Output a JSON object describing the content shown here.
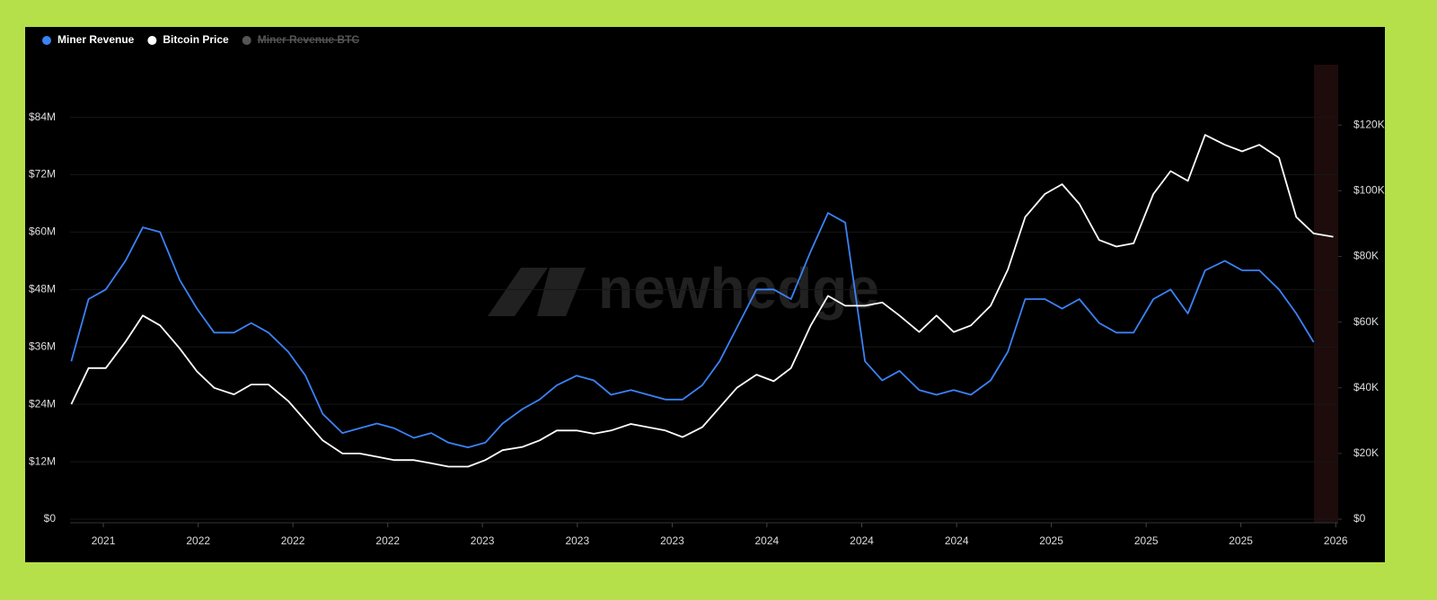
{
  "chart_data": {
    "type": "line",
    "watermark": "newhedge",
    "x": [
      2020.87,
      2020.94,
      2021.01,
      2021.09,
      2021.16,
      2021.23,
      2021.31,
      2021.38,
      2021.45,
      2021.53,
      2021.6,
      2021.67,
      2021.75,
      2021.82,
      2021.89,
      2021.97,
      2022.04,
      2022.11,
      2022.18,
      2022.26,
      2022.33,
      2022.4,
      2022.48,
      2022.55,
      2022.62,
      2022.7,
      2022.77,
      2022.84,
      2022.92,
      2022.99,
      2023.06,
      2023.14,
      2023.21,
      2023.28,
      2023.35,
      2023.43,
      2023.5,
      2023.57,
      2023.65,
      2023.72,
      2023.79,
      2023.87,
      2023.94,
      2024.01,
      2024.09,
      2024.16,
      2024.23,
      2024.31,
      2024.38,
      2024.45,
      2024.52,
      2024.6,
      2024.67,
      2024.74,
      2024.82,
      2024.89,
      2024.96,
      2025.04,
      2025.11,
      2025.18,
      2025.26,
      2025.33,
      2025.4,
      2025.47,
      2025.55,
      2025.62,
      2025.69,
      2025.77,
      2025.84,
      2025.91,
      2025.99
    ],
    "series": [
      {
        "name": "Miner Revenue",
        "color": "#3b82f6",
        "axis": "y",
        "values": [
          33,
          46,
          48,
          54,
          61,
          60,
          50,
          44,
          39,
          39,
          41,
          39,
          35,
          30,
          22,
          18,
          19,
          20,
          19,
          17,
          18,
          16,
          15,
          16,
          20,
          23,
          25,
          28,
          30,
          29,
          26,
          27,
          26,
          25,
          25,
          28,
          33,
          40,
          48,
          48,
          46,
          56,
          64,
          62,
          33,
          29,
          31,
          27,
          26,
          27,
          26,
          29,
          35,
          46,
          46,
          44,
          46,
          41,
          39,
          39,
          46,
          48,
          43,
          52,
          54,
          52,
          52,
          48,
          43,
          37,
          null
        ]
      },
      {
        "name": "Bitcoin Price",
        "color": "#ffffff",
        "axis": "y2",
        "values": [
          35,
          46,
          46,
          54,
          62,
          59,
          52,
          45,
          40,
          38,
          41,
          41,
          36,
          30,
          24,
          20,
          20,
          19,
          18,
          18,
          17,
          16,
          16,
          18,
          21,
          22,
          24,
          27,
          27,
          26,
          27,
          29,
          28,
          27,
          25,
          28,
          34,
          40,
          44,
          42,
          46,
          59,
          68,
          65,
          65,
          66,
          62,
          57,
          62,
          57,
          59,
          65,
          76,
          92,
          99,
          102,
          96,
          85,
          83,
          84,
          99,
          106,
          103,
          117,
          114,
          112,
          114,
          110,
          92,
          87,
          86
        ]
      }
    ],
    "hidden_series": [
      {
        "name": "Miner Revenue BTC",
        "color": "#555555"
      }
    ],
    "xlim": [
      2020.865,
      2026.01
    ],
    "xticks": [
      {
        "value": 2021.0,
        "label": "2021"
      },
      {
        "value": 2021.385,
        "label": "2022"
      },
      {
        "value": 2021.769,
        "label": "2022"
      },
      {
        "value": 2022.154,
        "label": "2022"
      },
      {
        "value": 2022.538,
        "label": "2023"
      },
      {
        "value": 2022.923,
        "label": "2023"
      },
      {
        "value": 2023.308,
        "label": "2023"
      },
      {
        "value": 2023.692,
        "label": "2024"
      },
      {
        "value": 2024.077,
        "label": "2024"
      },
      {
        "value": 2024.462,
        "label": "2024"
      },
      {
        "value": 2024.846,
        "label": "2025"
      },
      {
        "value": 2025.231,
        "label": "2025"
      },
      {
        "value": 2025.615,
        "label": "2025"
      },
      {
        "value": 2026.0,
        "label": "2026"
      }
    ],
    "ylim": [
      0,
      95
    ],
    "yticks": [
      {
        "value": 0,
        "label": "$0"
      },
      {
        "value": 12,
        "label": "$12M"
      },
      {
        "value": 24,
        "label": "$24M"
      },
      {
        "value": 36,
        "label": "$36M"
      },
      {
        "value": 48,
        "label": "$48M"
      },
      {
        "value": 60,
        "label": "$60M"
      },
      {
        "value": 72,
        "label": "$72M"
      },
      {
        "value": 84,
        "label": "$84M"
      }
    ],
    "y2lim": [
      0,
      138.4
    ],
    "y2ticks": [
      {
        "value": 0,
        "label": "$0"
      },
      {
        "value": 20,
        "label": "$20K"
      },
      {
        "value": 40,
        "label": "$40K"
      },
      {
        "value": 60,
        "label": "$60K"
      },
      {
        "value": 80,
        "label": "$80K"
      },
      {
        "value": 100,
        "label": "$100K"
      },
      {
        "value": 120,
        "label": "$120K"
      }
    ],
    "grid": true
  }
}
